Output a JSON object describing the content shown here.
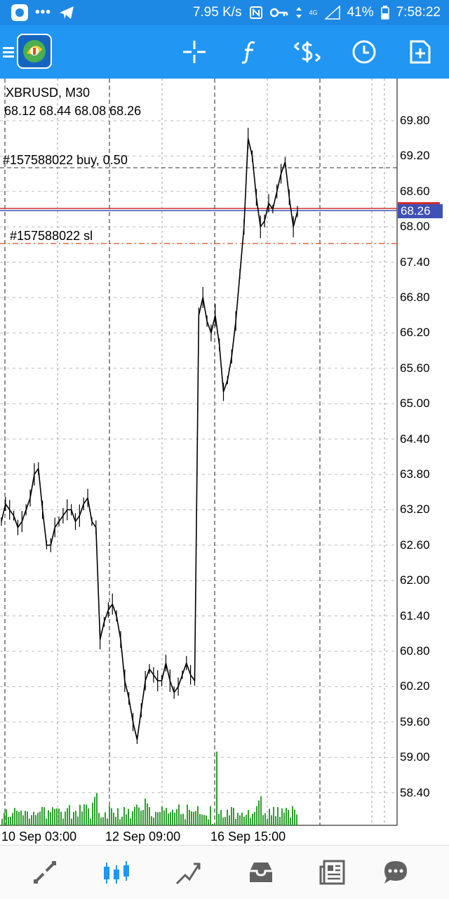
{
  "status_bar": {
    "speed": "7.95 K/s",
    "battery": "41%",
    "time": "7:58:22",
    "network": "4G"
  },
  "toolbar": {
    "buttons": [
      "menu-icon",
      "crosshair-icon",
      "indicators-icon",
      "trade-icon",
      "timeframe-icon",
      "new-order-icon"
    ]
  },
  "chart": {
    "symbol": "XBRUSD, M30",
    "ohlc": "68.12 68.44 68.08 68.26",
    "current_price": "68.26",
    "order_buy_label": "#157588022 buy, 0.50",
    "order_sl_label": "#157588022 sl",
    "price_axis": [
      "69.80",
      "69.20",
      "68.60",
      "68.00",
      "67.40",
      "66.80",
      "66.20",
      "65.60",
      "65.00",
      "64.40",
      "63.80",
      "63.20",
      "62.60",
      "62.00",
      "61.40",
      "60.80",
      "60.20",
      "59.60",
      "59.00",
      "58.40"
    ],
    "time_axis": [
      "10 Sep 03:00",
      "12 Sep 09:00",
      "16 Sep 15:00"
    ]
  },
  "chart_data": {
    "type": "line",
    "title": "XBRUSD, M30",
    "y_ticks": [
      69.8,
      69.2,
      68.6,
      68.0,
      67.4,
      66.8,
      66.2,
      65.6,
      65.0,
      64.4,
      63.8,
      63.2,
      62.6,
      62.0,
      61.4,
      60.8,
      60.2,
      59.6,
      59.0,
      58.4
    ],
    "x_ticks": [
      "10 Sep 03:00",
      "12 Sep 09:00",
      "16 Sep 15:00"
    ],
    "ylim": [
      58.0,
      70.4
    ],
    "series": [
      {
        "values": [
          63.0,
          63.3,
          63.2,
          63.1,
          62.9,
          63.0,
          63.2,
          63.4,
          63.8,
          63.9,
          63.2,
          62.6,
          62.6,
          62.9,
          63.0,
          63.1,
          63.2,
          63.2,
          63.0,
          63.1,
          63.3,
          63.4,
          63.0,
          62.9,
          61.0,
          61.3,
          61.5,
          61.6,
          61.4,
          61.0,
          60.3,
          60.0,
          59.6,
          59.3,
          59.8,
          60.3,
          60.5,
          60.4,
          60.3,
          60.3,
          60.6,
          60.3,
          60.1,
          60.2,
          60.4,
          60.6,
          60.4,
          60.3,
          66.5,
          66.8,
          66.4,
          66.2,
          66.5,
          66.0,
          65.2,
          65.4,
          65.8,
          66.4,
          67.2,
          68.0,
          69.5,
          69.2,
          68.5,
          68.0,
          68.1,
          68.4,
          68.3,
          68.6,
          68.9,
          69.1,
          68.5,
          68.0,
          68.26
        ]
      }
    ],
    "grid": true
  },
  "bottom_nav": {
    "items": [
      "quotes-icon",
      "chart-icon",
      "trade-icon",
      "history-icon",
      "news-icon",
      "chat-icon"
    ]
  }
}
